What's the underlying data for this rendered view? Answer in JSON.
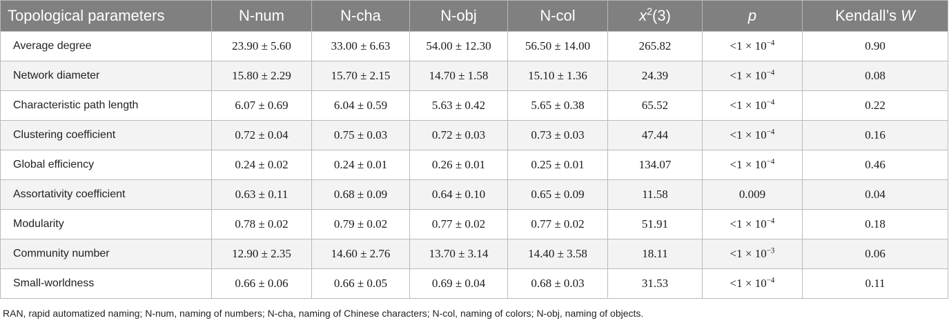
{
  "table": {
    "headers": {
      "param": "Topological parameters",
      "n_num": "N-num",
      "n_cha": "N-cha",
      "n_obj": "N-obj",
      "n_col": "N-col",
      "chi_base": "x",
      "chi_exp": "2",
      "chi_tail": "(3)",
      "p": "p",
      "kendall_pre": "Kendall’s ",
      "kendall_var": "W"
    },
    "rows": [
      {
        "param": "Average degree",
        "n_num": "23.90 ± 5.60",
        "n_cha": "33.00 ± 6.63",
        "n_obj": "54.00 ± 12.30",
        "n_col": "56.50 ± 14.00",
        "chi": "265.82",
        "p_base": "<1 × 10",
        "p_exp": "−4",
        "w": "0.90"
      },
      {
        "param": "Network diameter",
        "n_num": "15.80 ± 2.29",
        "n_cha": "15.70 ± 2.15",
        "n_obj": "14.70 ± 1.58",
        "n_col": "15.10 ± 1.36",
        "chi": "24.39",
        "p_base": "<1 × 10",
        "p_exp": "−4",
        "w": "0.08"
      },
      {
        "param": "Characteristic path length",
        "n_num": "6.07 ± 0.69",
        "n_cha": "6.04 ± 0.59",
        "n_obj": "5.63 ± 0.42",
        "n_col": "5.65 ± 0.38",
        "chi": "65.52",
        "p_base": "<1 × 10",
        "p_exp": "−4",
        "w": "0.22"
      },
      {
        "param": "Clustering coefficient",
        "n_num": "0.72 ± 0.04",
        "n_cha": "0.75 ± 0.03",
        "n_obj": "0.72 ± 0.03",
        "n_col": "0.73 ± 0.03",
        "chi": "47.44",
        "p_base": "<1 × 10",
        "p_exp": "−4",
        "w": "0.16"
      },
      {
        "param": "Global efficiency",
        "n_num": "0.24 ± 0.02",
        "n_cha": "0.24 ± 0.01",
        "n_obj": "0.26 ± 0.01",
        "n_col": "0.25 ± 0.01",
        "chi": "134.07",
        "p_base": "<1 × 10",
        "p_exp": "−4",
        "w": "0.46"
      },
      {
        "param": "Assortativity coefficient",
        "n_num": "0.63 ± 0.11",
        "n_cha": "0.68 ± 0.09",
        "n_obj": "0.64 ± 0.10",
        "n_col": "0.65 ± 0.09",
        "chi": "11.58",
        "p_base": "0.009",
        "p_exp": "",
        "w": "0.04"
      },
      {
        "param": "Modularity",
        "n_num": "0.78 ± 0.02",
        "n_cha": "0.79 ± 0.02",
        "n_obj": "0.77 ± 0.02",
        "n_col": "0.77 ± 0.02",
        "chi": "51.91",
        "p_base": "<1 × 10",
        "p_exp": "−4",
        "w": "0.18"
      },
      {
        "param": "Community number",
        "n_num": "12.90 ± 2.35",
        "n_cha": "14.60 ± 2.76",
        "n_obj": "13.70 ± 3.14",
        "n_col": "14.40 ± 3.58",
        "chi": "18.11",
        "p_base": "<1 × 10",
        "p_exp": "−3",
        "w": "0.06"
      },
      {
        "param": "Small-worldness",
        "n_num": "0.66 ± 0.06",
        "n_cha": "0.66 ± 0.05",
        "n_obj": "0.69 ± 0.04",
        "n_col": "0.68 ± 0.03",
        "chi": "31.53",
        "p_base": "<1 × 10",
        "p_exp": "−4",
        "w": "0.11"
      }
    ]
  },
  "footnote": "RAN, rapid automatized naming; N-num, naming of numbers; N-cha, naming of Chinese characters; N-col, naming of colors; N-obj, naming of objects.",
  "colors": {
    "header_bg": "#808080",
    "header_text": "#ffffff",
    "stripe": "#f3f3f3",
    "border": "#b9b9b9"
  }
}
